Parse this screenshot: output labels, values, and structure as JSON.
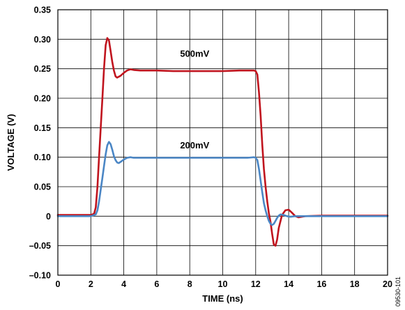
{
  "chart_data": {
    "type": "line",
    "xlabel": "TIME (ns)",
    "ylabel": "VOLTAGE (V)",
    "xlim": [
      0,
      20
    ],
    "ylim": [
      -0.1,
      0.35
    ],
    "grid": true,
    "x_ticks": [
      0,
      2,
      4,
      6,
      8,
      10,
      12,
      14,
      16,
      18,
      20
    ],
    "x_tick_labels": [
      "0",
      "2",
      "4",
      "6",
      "8",
      "10",
      "12",
      "14",
      "16",
      "18",
      "20"
    ],
    "y_ticks": [
      -0.1,
      -0.05,
      0,
      0.05,
      0.1,
      0.15,
      0.2,
      0.25,
      0.3,
      0.35
    ],
    "y_tick_labels": [
      "–0.10",
      "–0.05",
      "0",
      "0.05",
      "0.10",
      "0.15",
      "0.20",
      "0.25",
      "0.30",
      "0.35"
    ],
    "series": [
      {
        "name": "500mV",
        "color": "#c0141e",
        "x": [
          0,
          1,
          2,
          2.2,
          2.3,
          2.4,
          2.5,
          2.6,
          2.7,
          2.8,
          2.9,
          3.0,
          3.1,
          3.2,
          3.3,
          3.4,
          3.5,
          3.6,
          3.8,
          4.0,
          4.2,
          4.4,
          4.6,
          5,
          6,
          7,
          8,
          9,
          10,
          11,
          11.5,
          11.9,
          12.0,
          12.1,
          12.2,
          12.3,
          12.4,
          12.5,
          12.6,
          12.7,
          12.8,
          12.9,
          13.0,
          13.1,
          13.2,
          13.3,
          13.4,
          13.6,
          13.8,
          14.0,
          14.2,
          14.4,
          14.6,
          15,
          16,
          17,
          18,
          19,
          20
        ],
        "y": [
          0.002,
          0.002,
          0.002,
          0.004,
          0.015,
          0.05,
          0.1,
          0.15,
          0.2,
          0.25,
          0.29,
          0.302,
          0.298,
          0.28,
          0.262,
          0.247,
          0.237,
          0.235,
          0.238,
          0.243,
          0.247,
          0.249,
          0.248,
          0.247,
          0.247,
          0.246,
          0.246,
          0.246,
          0.246,
          0.247,
          0.247,
          0.247,
          0.246,
          0.24,
          0.21,
          0.17,
          0.12,
          0.08,
          0.05,
          0.025,
          0.005,
          -0.01,
          -0.03,
          -0.048,
          -0.05,
          -0.04,
          -0.02,
          0.002,
          0.01,
          0.011,
          0.006,
          0.0,
          -0.002,
          0.0,
          0.001,
          0.001,
          0.001,
          0.001,
          0.001
        ]
      },
      {
        "name": "200mV",
        "color": "#4a86c5",
        "x": [
          0,
          1,
          2,
          2.3,
          2.4,
          2.5,
          2.6,
          2.7,
          2.8,
          2.9,
          3.0,
          3.1,
          3.2,
          3.3,
          3.4,
          3.5,
          3.6,
          3.7,
          3.8,
          4.0,
          4.2,
          4.4,
          4.6,
          5,
          6,
          7,
          8,
          9,
          10,
          11,
          11.5,
          11.9,
          12.0,
          12.1,
          12.2,
          12.3,
          12.4,
          12.5,
          12.6,
          12.7,
          12.8,
          12.9,
          13.0,
          13.1,
          13.2,
          13.3,
          13.4,
          13.5,
          13.7,
          13.9,
          14.1,
          14.4,
          15,
          16,
          17,
          18,
          19,
          20
        ],
        "y": [
          0.0,
          0.0,
          0.0,
          0.003,
          0.01,
          0.025,
          0.045,
          0.065,
          0.085,
          0.105,
          0.12,
          0.126,
          0.122,
          0.113,
          0.102,
          0.095,
          0.091,
          0.09,
          0.092,
          0.096,
          0.099,
          0.1,
          0.099,
          0.099,
          0.099,
          0.099,
          0.099,
          0.099,
          0.099,
          0.099,
          0.099,
          0.1,
          0.099,
          0.095,
          0.08,
          0.06,
          0.04,
          0.022,
          0.01,
          0.0,
          -0.008,
          -0.013,
          -0.015,
          -0.013,
          -0.008,
          -0.003,
          0.001,
          0.003,
          0.002,
          0.0,
          -0.001,
          0.0,
          0.0,
          0.0,
          0.0,
          0.0,
          0.0,
          0.0
        ]
      }
    ],
    "annotations": [
      {
        "text": "500mV",
        "x": 8.3,
        "y": 0.27
      },
      {
        "text": "200mV",
        "x": 8.3,
        "y": 0.115
      }
    ]
  },
  "figure_id": "09530-101"
}
